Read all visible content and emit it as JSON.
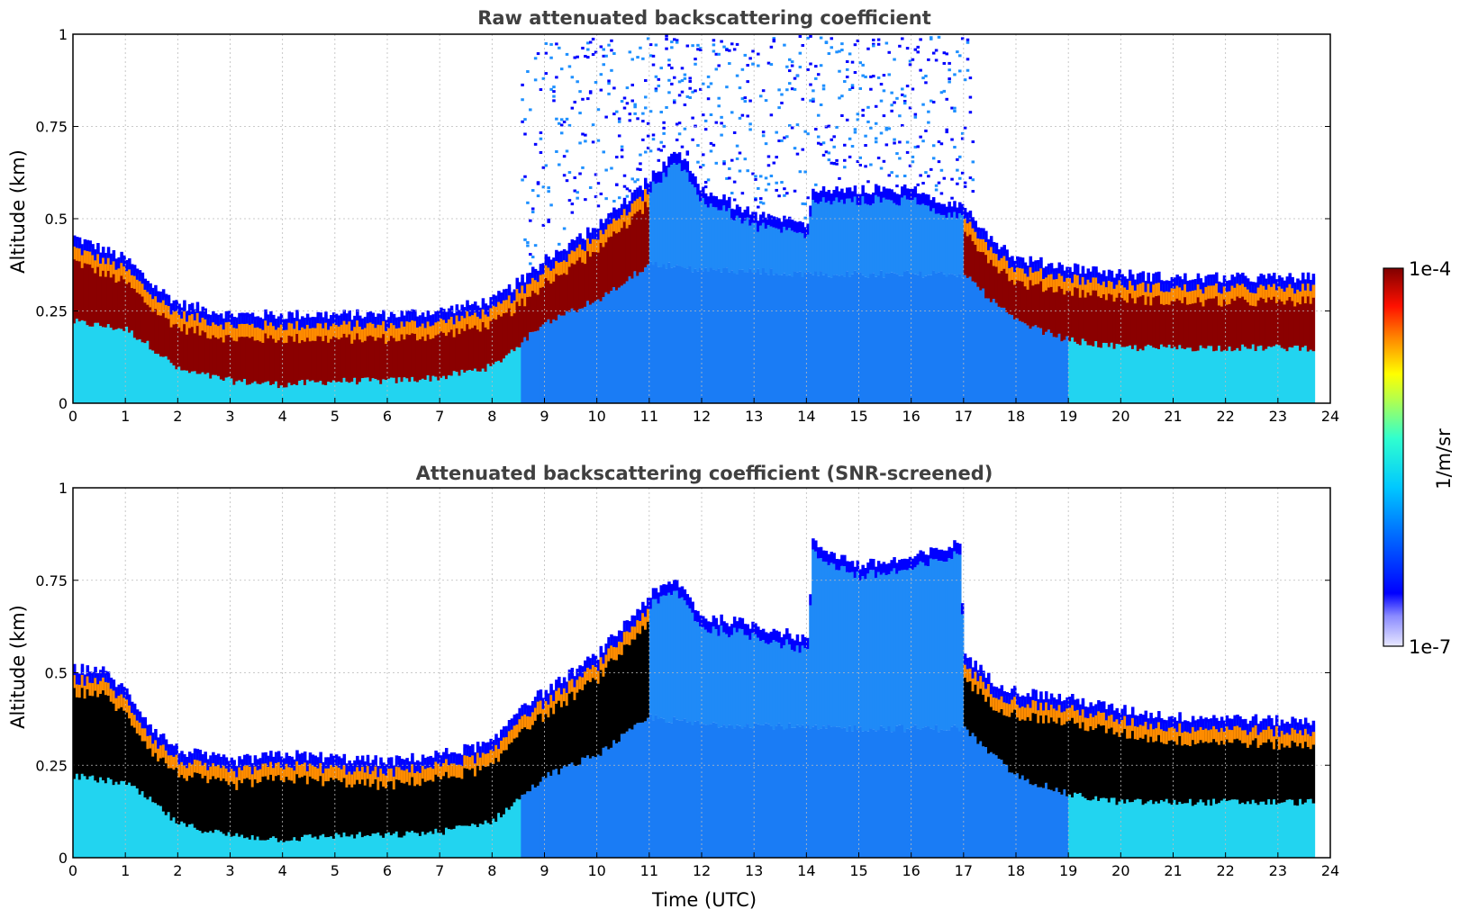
{
  "figure": {
    "colorbar": {
      "label": "1/m/sr",
      "max_label": "1e-4",
      "min_label": "1e-7"
    }
  },
  "chart_data": [
    {
      "type": "heatmap",
      "title": "Raw attenuated backscattering coefficient",
      "xlabel": "",
      "ylabel": "Altitude (km)",
      "xlim": [
        0,
        24
      ],
      "ylim": [
        0,
        1
      ],
      "x_ticks": [
        0,
        1,
        2,
        3,
        4,
        5,
        6,
        7,
        8,
        9,
        10,
        11,
        12,
        13,
        14,
        15,
        16,
        17,
        18,
        19,
        20,
        21,
        22,
        23,
        24
      ],
      "y_ticks": [
        0,
        0.25,
        0.5,
        0.75,
        1
      ],
      "y_tick_labels": [
        "0",
        "0.25",
        "0.5",
        "0.75",
        "1"
      ],
      "grid": true,
      "screened": false,
      "layer_top_km": [
        [
          0,
          0.42
        ],
        [
          0.5,
          0.39
        ],
        [
          1,
          0.36
        ],
        [
          1.5,
          0.29
        ],
        [
          2,
          0.24
        ],
        [
          3,
          0.21
        ],
        [
          4,
          0.21
        ],
        [
          5,
          0.21
        ],
        [
          6,
          0.21
        ],
        [
          7,
          0.22
        ],
        [
          8,
          0.25
        ],
        [
          8.5,
          0.3
        ],
        [
          9,
          0.36
        ],
        [
          10,
          0.45
        ],
        [
          11,
          0.58
        ],
        [
          11.5,
          0.66
        ],
        [
          12,
          0.55
        ],
        [
          13,
          0.48
        ],
        [
          14,
          0.45
        ],
        [
          14.1,
          0.55
        ],
        [
          15,
          0.55
        ],
        [
          16,
          0.55
        ],
        [
          17,
          0.5
        ],
        [
          17.5,
          0.42
        ],
        [
          18,
          0.36
        ],
        [
          19,
          0.34
        ],
        [
          20,
          0.32
        ],
        [
          21,
          0.31
        ],
        [
          22,
          0.31
        ],
        [
          23,
          0.31
        ],
        [
          23.7,
          0.31
        ]
      ],
      "layer_bottom_km": [
        [
          0,
          0.22
        ],
        [
          1,
          0.2
        ],
        [
          1.5,
          0.15
        ],
        [
          2,
          0.09
        ],
        [
          3,
          0.06
        ],
        [
          4,
          0.05
        ],
        [
          5,
          0.06
        ],
        [
          6,
          0.06
        ],
        [
          7,
          0.07
        ],
        [
          8,
          0.1
        ],
        [
          8.5,
          0.16
        ],
        [
          9,
          0.22
        ],
        [
          10,
          0.28
        ],
        [
          11,
          0.38
        ],
        [
          12,
          0.36
        ],
        [
          13,
          0.36
        ],
        [
          14,
          0.35
        ],
        [
          17,
          0.35
        ],
        [
          17.5,
          0.28
        ],
        [
          18,
          0.22
        ],
        [
          19,
          0.17
        ],
        [
          20,
          0.15
        ],
        [
          21,
          0.15
        ],
        [
          22,
          0.15
        ],
        [
          23,
          0.15
        ],
        [
          23.7,
          0.15
        ]
      ],
      "noise_region_hours": [
        [
          8.5,
          17.2
        ]
      ],
      "colorbar_range": [
        "1e-7",
        "1e-4"
      ],
      "colorbar_units": "1/m/sr"
    },
    {
      "type": "heatmap",
      "title": "Attenuated backscattering coefficient (SNR-screened)",
      "xlabel": "Time (UTC)",
      "ylabel": "Altitude (km)",
      "xlim": [
        0,
        24
      ],
      "ylim": [
        0,
        1
      ],
      "x_ticks": [
        0,
        1,
        2,
        3,
        4,
        5,
        6,
        7,
        8,
        9,
        10,
        11,
        12,
        13,
        14,
        15,
        16,
        17,
        18,
        19,
        20,
        21,
        22,
        23,
        24
      ],
      "y_ticks": [
        0,
        0.25,
        0.5,
        0.75,
        1
      ],
      "y_tick_labels": [
        "0",
        "0.25",
        "0.5",
        "0.75",
        "1"
      ],
      "grid": true,
      "screened": true,
      "layer_top_km": [
        [
          0,
          0.48
        ],
        [
          0.5,
          0.48
        ],
        [
          1,
          0.42
        ],
        [
          1.5,
          0.32
        ],
        [
          2,
          0.26
        ],
        [
          3,
          0.23
        ],
        [
          4,
          0.25
        ],
        [
          5,
          0.24
        ],
        [
          6,
          0.23
        ],
        [
          7,
          0.25
        ],
        [
          8,
          0.28
        ],
        [
          8.5,
          0.38
        ],
        [
          9,
          0.42
        ],
        [
          10,
          0.52
        ],
        [
          11,
          0.68
        ],
        [
          11.5,
          0.72
        ],
        [
          12,
          0.62
        ],
        [
          13,
          0.6
        ],
        [
          14,
          0.56
        ],
        [
          14.1,
          0.82
        ],
        [
          15,
          0.76
        ],
        [
          16,
          0.78
        ],
        [
          16.9,
          0.82
        ],
        [
          17,
          0.52
        ],
        [
          17.5,
          0.45
        ],
        [
          18,
          0.42
        ],
        [
          19,
          0.4
        ],
        [
          20,
          0.37
        ],
        [
          21,
          0.35
        ],
        [
          22,
          0.35
        ],
        [
          23,
          0.34
        ],
        [
          23.7,
          0.34
        ]
      ],
      "layer_bottom_km": [
        [
          0,
          0.22
        ],
        [
          1,
          0.2
        ],
        [
          1.5,
          0.15
        ],
        [
          2,
          0.09
        ],
        [
          3,
          0.06
        ],
        [
          4,
          0.05
        ],
        [
          5,
          0.06
        ],
        [
          6,
          0.06
        ],
        [
          7,
          0.07
        ],
        [
          8,
          0.1
        ],
        [
          8.5,
          0.16
        ],
        [
          9,
          0.22
        ],
        [
          10,
          0.28
        ],
        [
          11,
          0.38
        ],
        [
          12,
          0.36
        ],
        [
          13,
          0.36
        ],
        [
          14,
          0.35
        ],
        [
          17,
          0.35
        ],
        [
          17.5,
          0.28
        ],
        [
          18,
          0.22
        ],
        [
          19,
          0.17
        ],
        [
          20,
          0.15
        ],
        [
          21,
          0.15
        ],
        [
          22,
          0.15
        ],
        [
          23,
          0.15
        ],
        [
          23.7,
          0.15
        ]
      ],
      "noise_region_hours": [],
      "colorbar_range": [
        "1e-7",
        "1e-4"
      ],
      "colorbar_units": "1/m/sr"
    }
  ]
}
